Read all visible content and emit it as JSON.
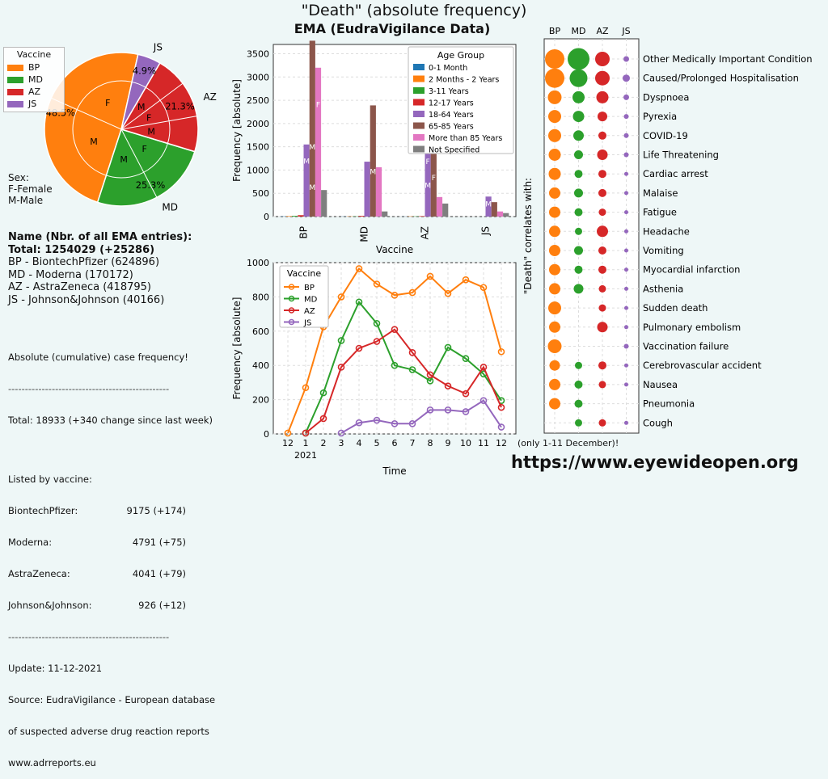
{
  "title": "\"Death\" (absolute frequency)",
  "subtitle": "EMA (EudraVigilance Data)",
  "url": "https://www.eyewideopen.org",
  "colors": {
    "BP": "#ff7f0e",
    "MD": "#2ca02c",
    "AZ": "#d62728",
    "JS": "#9467bd"
  },
  "pie_legend": {
    "title": "Vaccine",
    "items": [
      "BP",
      "MD",
      "AZ",
      "JS"
    ]
  },
  "sex_note": [
    "Sex:",
    "F-Female",
    "M-Male"
  ],
  "names": {
    "heading": "Name  (Nbr. of all EMA entries):",
    "total": "Total: 1254029 (+25286)",
    "lines": [
      "BP - BiontechPfizer (624896)",
      "MD - Moderna (170172)",
      "AZ - AstraZeneca (418795)",
      "JS - Johnson&Johnson (40166)"
    ]
  },
  "cumulative": {
    "heading": "Absolute (cumulative) case frequency!",
    "separator": "------------------------------------------------",
    "total": "Total: 18933 (+340 change since last week)",
    "listed": "Listed by vaccine:",
    "rows": [
      [
        "BiontechPfizer:",
        "9175 (+174)"
      ],
      [
        "Moderna:",
        "4791 (+75)"
      ],
      [
        "AstraZeneca:",
        "4041 (+79)"
      ],
      [
        "Johnson&Johnson:",
        "926 (+12)"
      ]
    ],
    "separator2": "------------------------------------------------",
    "update": "Update: 11-12-2021",
    "source": [
      "Source: EudraVigilance - European database",
      "of suspected adverse drug reaction reports",
      "www.adrreports.eu"
    ]
  },
  "bubble_note": "(only 1-11 December)!",
  "chart_data": [
    {
      "type": "pie",
      "slices": [
        {
          "label": "BP",
          "value": 48.5,
          "pct_label": "48.5%"
        },
        {
          "label": "MD",
          "value": 25.3,
          "pct_label": "25.3%"
        },
        {
          "label": "AZ",
          "value": 21.3,
          "pct_label": "21.3%"
        },
        {
          "label": "JS",
          "value": 4.9,
          "pct_label": "4.9%"
        }
      ],
      "inner_labels": {
        "BP": [
          "F",
          "M"
        ],
        "MD": [
          "M",
          "F"
        ],
        "AZ": [
          "M",
          "F",
          "M"
        ],
        "JS": []
      }
    },
    {
      "type": "bar",
      "categories": [
        "BP",
        "MD",
        "AZ",
        "JS"
      ],
      "xlabel": "Vaccine",
      "ylabel": "Frequency [absolute]",
      "ylim": [
        0,
        3700
      ],
      "yticks": [
        0,
        500,
        1000,
        1500,
        2000,
        2500,
        3000,
        3500
      ],
      "legend_title": "Age Group",
      "series": [
        {
          "name": "0-1 Month",
          "color": "#1f77b4",
          "values": [
            5,
            3,
            2,
            0
          ]
        },
        {
          "name": "2 Months - 2 Years",
          "color": "#ff7f0e",
          "values": [
            10,
            5,
            5,
            0
          ]
        },
        {
          "name": "3-11 Years",
          "color": "#2ca02c",
          "values": [
            15,
            5,
            5,
            0
          ]
        },
        {
          "name": "12-17 Years",
          "color": "#d62728",
          "values": [
            30,
            15,
            10,
            0
          ]
        },
        {
          "name": "18-64 Years",
          "color": "#9467bd",
          "values": [
            1550,
            1180,
            1590,
            430
          ]
        },
        {
          "name": "65-85 Years",
          "color": "#8c564b",
          "values": [
            3780,
            2390,
            2050,
            310
          ]
        },
        {
          "name": "More than 85 Years",
          "color": "#e377c2",
          "values": [
            3200,
            1060,
            420,
            110
          ]
        },
        {
          "name": "Not Specified",
          "color": "#7f7f7f",
          "values": [
            570,
            110,
            280,
            75
          ]
        }
      ],
      "bar_labels": {
        "BP": [
          "F",
          "M",
          "F",
          "M",
          "M"
        ],
        "MD": [
          "F",
          "M",
          "M"
        ],
        "AZ": [
          "F",
          "F",
          "M",
          "M"
        ],
        "JS": [
          "M"
        ]
      }
    },
    {
      "type": "line",
      "x": [
        "12",
        "1",
        "2",
        "3",
        "4",
        "5",
        "6",
        "7",
        "8",
        "9",
        "10",
        "11",
        "12"
      ],
      "x_sub": "2021",
      "xlabel": "Time",
      "ylabel": "Frequency [absolute]",
      "ylim": [
        0,
        1000
      ],
      "yticks": [
        0,
        200,
        400,
        600,
        800,
        1000
      ],
      "legend_title": "Vaccine",
      "series": [
        {
          "name": "BP",
          "values": [
            5,
            270,
            625,
            800,
            965,
            875,
            810,
            825,
            920,
            820,
            900,
            855,
            480
          ]
        },
        {
          "name": "MD",
          "values": [
            null,
            5,
            240,
            545,
            770,
            645,
            400,
            375,
            310,
            505,
            440,
            350,
            195
          ]
        },
        {
          "name": "AZ",
          "values": [
            null,
            5,
            90,
            390,
            500,
            540,
            610,
            475,
            345,
            280,
            235,
            390,
            155
          ]
        },
        {
          "name": "JS",
          "values": [
            null,
            null,
            null,
            5,
            65,
            80,
            60,
            60,
            140,
            140,
            130,
            195,
            40
          ]
        }
      ]
    },
    {
      "type": "scatter",
      "columns": [
        "BP",
        "MD",
        "AZ",
        "JS"
      ],
      "ylabel": "\"Death\" correlates with:",
      "rows": [
        {
          "label": "Other Medically Important Condition",
          "sizes": [
            24,
            27,
            18,
            7
          ]
        },
        {
          "label": "Caused/Prolonged Hospitalisation",
          "sizes": [
            24,
            22,
            18,
            9
          ]
        },
        {
          "label": "Dyspnoea",
          "sizes": [
            17,
            15,
            15,
            7
          ]
        },
        {
          "label": "Pyrexia",
          "sizes": [
            16,
            14,
            12,
            6
          ]
        },
        {
          "label": "COVID-19",
          "sizes": [
            16,
            13,
            10,
            6
          ]
        },
        {
          "label": "Life Threatening",
          "sizes": [
            15,
            11,
            13,
            6
          ]
        },
        {
          "label": "Cardiac arrest",
          "sizes": [
            15,
            10,
            10,
            5
          ]
        },
        {
          "label": "Malaise",
          "sizes": [
            14,
            11,
            10,
            5
          ]
        },
        {
          "label": "Fatigue",
          "sizes": [
            14,
            10,
            9,
            5
          ]
        },
        {
          "label": "Headache",
          "sizes": [
            14,
            9,
            14,
            5
          ]
        },
        {
          "label": "Vomiting",
          "sizes": [
            14,
            11,
            10,
            5
          ]
        },
        {
          "label": "Myocardial infarction",
          "sizes": [
            14,
            10,
            10,
            5
          ]
        },
        {
          "label": "Asthenia",
          "sizes": [
            14,
            12,
            9,
            5
          ]
        },
        {
          "label": "Sudden death",
          "sizes": [
            16,
            0,
            9,
            5
          ]
        },
        {
          "label": "Pulmonary embolism",
          "sizes": [
            14,
            0,
            13,
            5
          ]
        },
        {
          "label": "Vaccination failure",
          "sizes": [
            17,
            0,
            0,
            6
          ]
        },
        {
          "label": "Cerebrovascular accident",
          "sizes": [
            13,
            9,
            10,
            5
          ]
        },
        {
          "label": "Nausea",
          "sizes": [
            14,
            10,
            9,
            5
          ]
        },
        {
          "label": "Pneumonia",
          "sizes": [
            14,
            10,
            0,
            0
          ]
        },
        {
          "label": "Cough",
          "sizes": [
            0,
            9,
            9,
            5
          ]
        }
      ]
    }
  ]
}
